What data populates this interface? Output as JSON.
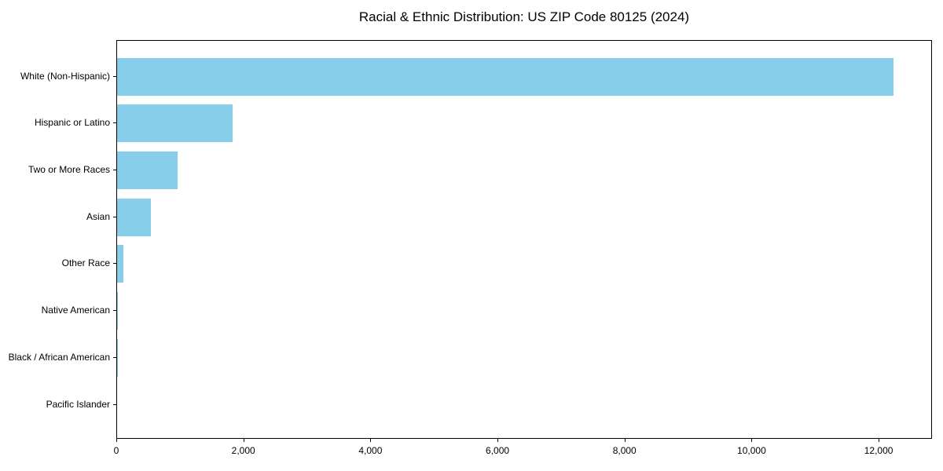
{
  "chart_data": {
    "type": "bar",
    "orientation": "horizontal",
    "title": "Racial & Ethnic Distribution: US ZIP Code 80125 (2024)",
    "categories": [
      "White (Non-Hispanic)",
      "Hispanic or Latino",
      "Two or More Races",
      "Asian",
      "Other Race",
      "Native American",
      "Black / African American",
      "Pacific Islander"
    ],
    "values": [
      12220,
      1820,
      950,
      530,
      100,
      15,
      5,
      0
    ],
    "xlabel": "",
    "ylabel": "",
    "xlim": [
      0,
      12840
    ],
    "xticks": [
      0,
      2000,
      4000,
      6000,
      8000,
      10000,
      12000
    ],
    "xtick_labels": [
      "0",
      "2,000",
      "4,000",
      "6,000",
      "8,000",
      "10,000",
      "12,000"
    ],
    "bar_color": "#87CEEB",
    "axis_color": "#000000",
    "background_color": "#ffffff",
    "grid": false,
    "legend": null
  }
}
